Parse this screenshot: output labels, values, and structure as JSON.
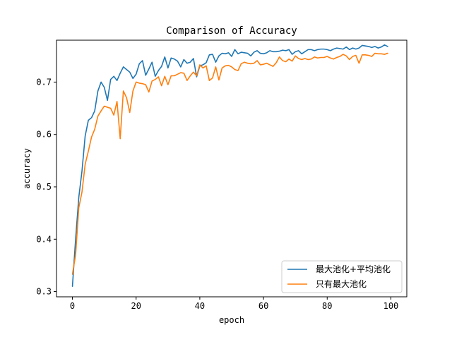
{
  "chart_data": {
    "type": "line",
    "title": "Comparison of Accuracy",
    "xlabel": "epoch",
    "ylabel": "accuracy",
    "xlim": [
      -5,
      105
    ],
    "ylim": [
      0.29,
      0.78
    ],
    "xticks": [
      0,
      20,
      40,
      60,
      80,
      100
    ],
    "yticks": [
      0.3,
      0.4,
      0.5,
      0.6,
      0.7
    ],
    "grid": false,
    "legend_position": "bottom-right",
    "series": [
      {
        "name": "最大池化+平均池化",
        "color": "#1f77b4",
        "values": [
          0.31,
          0.4,
          0.48,
          0.53,
          0.597,
          0.627,
          0.632,
          0.645,
          0.683,
          0.7,
          0.69,
          0.665,
          0.705,
          0.711,
          0.703,
          0.717,
          0.729,
          0.724,
          0.719,
          0.707,
          0.715,
          0.735,
          0.741,
          0.713,
          0.725,
          0.738,
          0.711,
          0.722,
          0.73,
          0.748,
          0.727,
          0.746,
          0.744,
          0.74,
          0.729,
          0.743,
          0.736,
          0.738,
          0.745,
          0.71,
          0.731,
          0.733,
          0.737,
          0.752,
          0.753,
          0.738,
          0.75,
          0.755,
          0.754,
          0.756,
          0.749,
          0.762,
          0.754,
          0.757,
          0.756,
          0.755,
          0.75,
          0.757,
          0.76,
          0.755,
          0.754,
          0.756,
          0.76,
          0.758,
          0.758,
          0.759,
          0.761,
          0.76,
          0.762,
          0.753,
          0.758,
          0.76,
          0.754,
          0.758,
          0.762,
          0.762,
          0.76,
          0.762,
          0.763,
          0.763,
          0.762,
          0.76,
          0.763,
          0.765,
          0.764,
          0.763,
          0.767,
          0.762,
          0.765,
          0.763,
          0.765,
          0.77,
          0.769,
          0.768,
          0.766,
          0.768,
          0.765,
          0.767,
          0.771,
          0.768
        ]
      },
      {
        "name": "只有最大池化",
        "color": "#ff7f0e",
        "values": [
          0.333,
          0.37,
          0.46,
          0.49,
          0.543,
          0.568,
          0.595,
          0.61,
          0.635,
          0.645,
          0.654,
          0.652,
          0.65,
          0.637,
          0.663,
          0.592,
          0.683,
          0.67,
          0.642,
          0.683,
          0.7,
          0.698,
          0.697,
          0.695,
          0.681,
          0.702,
          0.705,
          0.71,
          0.693,
          0.711,
          0.695,
          0.712,
          0.712,
          0.715,
          0.718,
          0.717,
          0.703,
          0.712,
          0.719,
          0.712,
          0.733,
          0.727,
          0.731,
          0.703,
          0.708,
          0.729,
          0.704,
          0.727,
          0.731,
          0.732,
          0.729,
          0.724,
          0.722,
          0.735,
          0.738,
          0.736,
          0.735,
          0.736,
          0.741,
          0.733,
          0.734,
          0.736,
          0.733,
          0.73,
          0.737,
          0.748,
          0.741,
          0.739,
          0.744,
          0.74,
          0.75,
          0.745,
          0.743,
          0.745,
          0.743,
          0.744,
          0.748,
          0.746,
          0.747,
          0.747,
          0.749,
          0.746,
          0.744,
          0.747,
          0.749,
          0.753,
          0.75,
          0.743,
          0.749,
          0.751,
          0.736,
          0.752,
          0.752,
          0.751,
          0.749,
          0.755,
          0.754,
          0.754,
          0.753,
          0.755
        ]
      }
    ]
  }
}
